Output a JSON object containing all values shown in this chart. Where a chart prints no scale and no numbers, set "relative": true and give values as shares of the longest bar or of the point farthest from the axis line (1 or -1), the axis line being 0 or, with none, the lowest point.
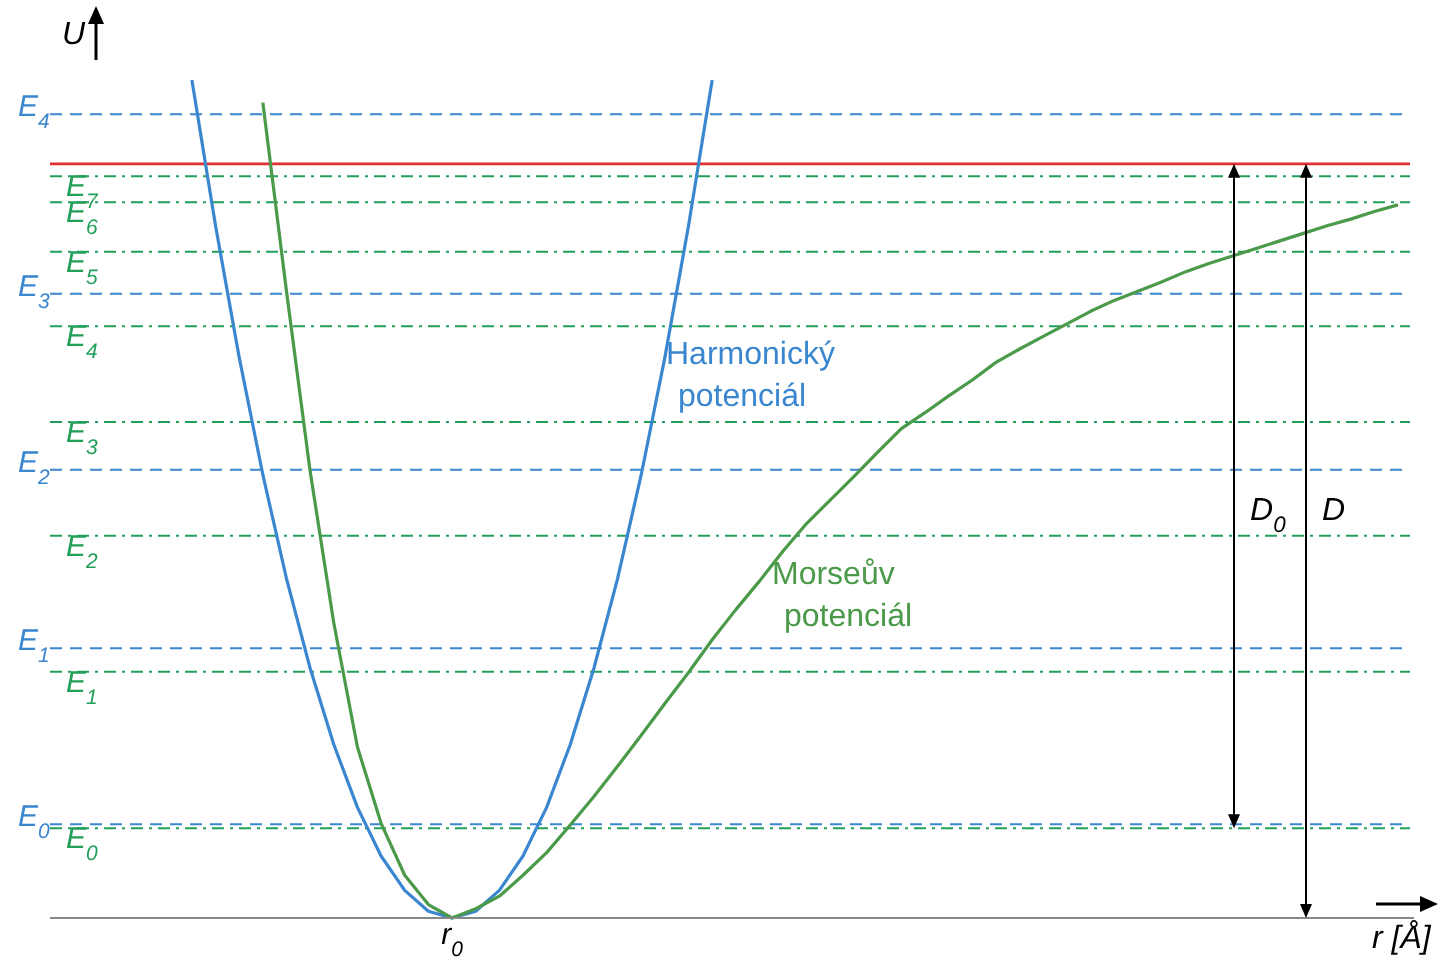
{
  "chart_data": {
    "type": "line",
    "relative": true,
    "xlabel": "r [Å]",
    "ylabel": "U",
    "marker": "none",
    "line_style": "solid",
    "categories": [
      null,
      null,
      null,
      null,
      null,
      null,
      null,
      null,
      null,
      null,
      null,
      null,
      null,
      null,
      null,
      null,
      null,
      null,
      null,
      null,
      null,
      null,
      null,
      null,
      null,
      null,
      null,
      null,
      null,
      null,
      null,
      null,
      null,
      null,
      null,
      null,
      null,
      null,
      null,
      null,
      null,
      null,
      null,
      null,
      null,
      null,
      null,
      null,
      null,
      null,
      null,
      null,
      null,
      null,
      null,
      null,
      null,
      null
    ],
    "series": [
      {
        "name": "Harmonický potenciál",
        "color": "#3a87d0",
        "values": [
          null,
          null,
          null,
          null,
          null,
          null,
          1,
          0.826,
          0.669,
          0.529,
          0.405,
          0.298,
          0.207,
          0.132,
          0.074,
          0.033,
          0.008,
          0,
          0.008,
          0.033,
          0.074,
          0.132,
          0.207,
          0.298,
          0.405,
          0.529,
          0.669,
          0.826,
          1,
          null,
          null,
          null,
          null,
          null,
          null,
          null,
          null,
          null,
          null,
          null,
          null,
          null,
          null,
          null,
          null,
          null,
          null,
          null,
          null,
          null,
          null,
          null,
          null,
          null,
          null,
          null,
          null,
          null
        ]
      },
      {
        "name": "Morseův potenciál",
        "color": "#4a9a4a",
        "values": [
          null,
          null,
          null,
          null,
          null,
          null,
          null,
          null,
          null,
          0.973,
          0.748,
          0.533,
          0.352,
          0.204,
          0.113,
          0.051,
          0.016,
          0,
          0.011,
          0.026,
          0.051,
          0.078,
          0.111,
          0.145,
          0.181,
          0.218,
          0.256,
          0.293,
          0.332,
          0.368,
          0.402,
          0.438,
          0.471,
          0.499,
          0.527,
          0.556,
          0.584,
          0.603,
          0.623,
          0.642,
          0.663,
          0.679,
          0.694,
          0.709,
          0.724,
          0.737,
          0.748,
          0.759,
          0.771,
          0.781,
          0.79,
          0.799,
          0.808,
          0.817,
          0.826,
          0.834,
          0.843,
          0.851
        ]
      }
    ],
    "ref_lines": [
      {
        "axis": "y",
        "value": 0.112,
        "label": "E$_{0}$",
        "color": "#3a87d0",
        "line_style": "dashed"
      },
      {
        "axis": "y",
        "value": 0.322,
        "label": "E$_{1}$",
        "color": "#3a87d0",
        "line_style": "dashed"
      },
      {
        "axis": "y",
        "value": 0.535,
        "label": "E$_{2}$",
        "color": "#3a87d0",
        "line_style": "dashed"
      },
      {
        "axis": "y",
        "value": 0.745,
        "label": "E$_{3}$",
        "color": "#3a87d0",
        "line_style": "dashed"
      },
      {
        "axis": "y",
        "value": 0.959,
        "label": "E$_{4}$",
        "color": "#3a87d0",
        "line_style": "dashed"
      },
      {
        "axis": "y",
        "value": 0.107,
        "label": "E$_{0}$",
        "color": "#22a05a",
        "line_style": "dotted"
      },
      {
        "axis": "y",
        "value": 0.294,
        "label": "E$_{1}$",
        "color": "#22a05a",
        "line_style": "dotted"
      },
      {
        "axis": "y",
        "value": 0.456,
        "label": "E$_{2}$",
        "color": "#22a05a",
        "line_style": "dotted"
      },
      {
        "axis": "y",
        "value": 0.592,
        "label": "E$_{3}$",
        "color": "#22a05a",
        "line_style": "dotted"
      },
      {
        "axis": "y",
        "value": 0.706,
        "label": "E$_{4}$",
        "color": "#22a05a",
        "line_style": "dotted"
      },
      {
        "axis": "y",
        "value": 0.795,
        "label": "E$_{5}$",
        "color": "#22a05a",
        "line_style": "dotted"
      },
      {
        "axis": "y",
        "value": 0.854,
        "label": "E$_{6}$",
        "color": "#22a05a",
        "line_style": "dotted"
      },
      {
        "axis": "y",
        "value": 0.885,
        "label": "E$_{7}$",
        "color": "#22a05a",
        "line_style": "dotted"
      },
      {
        "axis": "y",
        "value": 0.9,
        "label": null,
        "color": "#e03030",
        "line_style": "solid"
      }
    ],
    "annotations": [
      "r$_{0}$",
      "D$_{0}$",
      "D"
    ]
  }
}
